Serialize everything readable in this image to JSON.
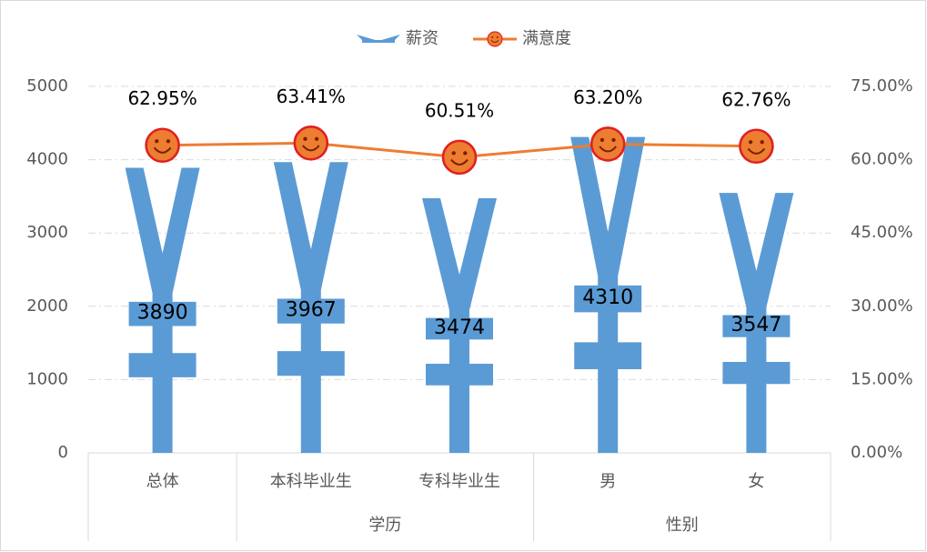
{
  "chart_data": {
    "type": "bar",
    "categories": [
      "总体",
      "本科毕业生",
      "专科毕业生",
      "男",
      "女"
    ],
    "category_groups": [
      null,
      "学历",
      "学历",
      "性别",
      "性别"
    ],
    "series": [
      {
        "name": "薪资",
        "type": "bar",
        "color": "#5b9bd5",
        "values": [
          3890,
          3967,
          3474,
          4310,
          3547
        ]
      },
      {
        "name": "满意度",
        "type": "line",
        "axis": "y2",
        "color": "#ed7d31",
        "values": [
          62.95,
          63.41,
          60.51,
          63.2,
          62.76
        ],
        "value_labels": [
          "62.95%",
          "63.41%",
          "60.51%",
          "63.20%",
          "62.76%"
        ]
      }
    ],
    "ylim": [
      0,
      5000
    ],
    "yticks": [
      0,
      1000,
      2000,
      3000,
      4000,
      5000
    ],
    "y2lim": [
      0,
      75
    ],
    "y2ticks": [
      {
        "value": 0,
        "label": "0.00%"
      },
      {
        "value": 15,
        "label": "15.00%"
      },
      {
        "value": 30,
        "label": "30.00%"
      },
      {
        "value": 45,
        "label": "45.00%"
      },
      {
        "value": 60,
        "label": "60.00%"
      },
      {
        "value": 75,
        "label": "75.00%"
      }
    ],
    "grid": true,
    "legend": "top"
  }
}
